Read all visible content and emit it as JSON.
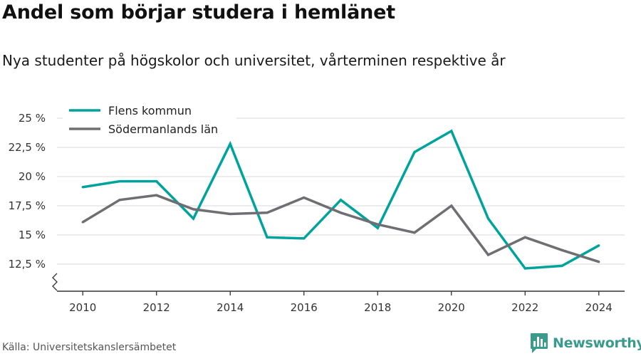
{
  "header": {
    "title": "Andel som börjar studera i hemlänet",
    "subtitle": "Nya studenter på högskolor och universitet, vårterminen respektive år"
  },
  "footer": {
    "source": "Källa: Universitetskanslersämbetet",
    "brand": "Newsworthy",
    "brand_icon": "newsworthy-bar-chart-logo",
    "brand_color": "#3a9a8c"
  },
  "chart_data": {
    "type": "line",
    "x": [
      2010,
      2011,
      2012,
      2013,
      2014,
      2015,
      2016,
      2017,
      2018,
      2019,
      2020,
      2021,
      2022,
      2023,
      2024
    ],
    "series": [
      {
        "name": "Flens kommun",
        "color": "#00a39b",
        "values": [
          19.1,
          19.6,
          19.6,
          16.4,
          22.8,
          14.8,
          14.7,
          18.0,
          15.6,
          22.1,
          23.9,
          16.4,
          12.0,
          12.3,
          14.1
        ]
      },
      {
        "name": "Södermanlands län",
        "color": "#6e6e73",
        "values": [
          16.1,
          18.0,
          18.4,
          17.2,
          16.8,
          16.9,
          18.2,
          16.9,
          15.9,
          15.2,
          17.5,
          13.3,
          14.8,
          13.7,
          12.7
        ]
      }
    ],
    "ylim": [
      10,
      25
    ],
    "y_ticks": [
      12.5,
      15,
      17.5,
      20,
      22.5,
      25
    ],
    "y_tick_labels": [
      "12,5 %",
      "15 %",
      "17,5 %",
      "20 %",
      "22,5 %",
      "25 %"
    ],
    "x_ticks": [
      2010,
      2012,
      2014,
      2016,
      2018,
      2020,
      2022,
      2024
    ],
    "x_tick_labels": [
      "2010",
      "2012",
      "2014",
      "2016",
      "2018",
      "2020",
      "2022",
      "2024"
    ],
    "grid": "horizontal",
    "axis_break": true,
    "legend_position": "top-left"
  }
}
